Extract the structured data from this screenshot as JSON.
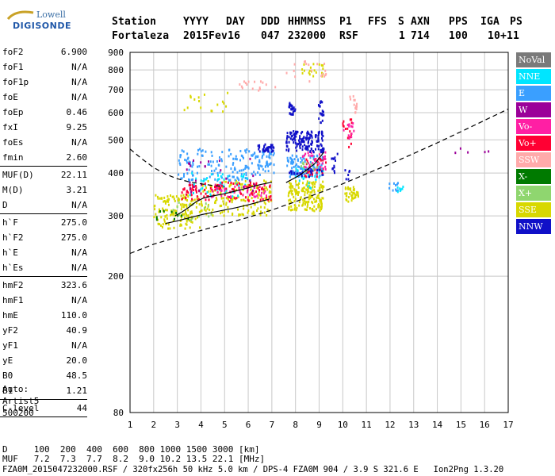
{
  "logo": {
    "line1": "Lowell",
    "line2": "DIGISONDE"
  },
  "header": {
    "labels": [
      "Station",
      "YYYY",
      "DAY",
      "DDD",
      "HHMMSS",
      "P1",
      "FFS",
      "S",
      "AXN",
      "PPS",
      "IGA",
      "PS"
    ],
    "values": [
      "Fortaleza",
      "2015",
      "Fev16",
      "047",
      "232000",
      "RSF",
      "",
      "1",
      "714",
      "100",
      "10+",
      "11"
    ]
  },
  "params_group1": [
    {
      "label": "foF2",
      "value": "6.900"
    },
    {
      "label": "foF1",
      "value": "N/A"
    },
    {
      "label": "foF1p",
      "value": "N/A"
    },
    {
      "label": "foE",
      "value": "N/A"
    },
    {
      "label": "foEp",
      "value": "0.46"
    },
    {
      "label": "fxI",
      "value": "9.25"
    },
    {
      "label": "foEs",
      "value": "N/A"
    },
    {
      "label": "fmin",
      "value": "2.60"
    }
  ],
  "params_group2": [
    {
      "label": "MUF(D)",
      "value": "22.11"
    },
    {
      "label": "M(D)",
      "value": "3.21"
    },
    {
      "label": "D",
      "value": "N/A"
    }
  ],
  "params_group3": [
    {
      "label": "h`F",
      "value": "275.0"
    },
    {
      "label": "h`F2",
      "value": "275.0"
    },
    {
      "label": "h`E",
      "value": "N/A"
    },
    {
      "label": "h`Es",
      "value": "N/A"
    }
  ],
  "params_group4": [
    {
      "label": "hmF2",
      "value": "323.6"
    },
    {
      "label": "hmF1",
      "value": "N/A"
    },
    {
      "label": "hmE",
      "value": "110.0"
    },
    {
      "label": "yF2",
      "value": "40.9"
    },
    {
      "label": "yF1",
      "value": "N/A"
    },
    {
      "label": "yE",
      "value": "20.0"
    },
    {
      "label": "B0",
      "value": "48.5"
    },
    {
      "label": "B1",
      "value": "1.21"
    }
  ],
  "params_group5": [
    {
      "label": "C-level",
      "value": "44"
    }
  ],
  "auto": {
    "line1": "Auto:",
    "line2": "Artist5",
    "line3": "500200"
  },
  "bottom": {
    "d_row": "D     100  200  400  600  800 1000 1500 3000 [km]",
    "muf_row": "MUF   7.2  7.3  7.7  8.2  9.0 10.2 13.5 22.1 [MHz]",
    "footer": "FZA0M_2015047232000.RSF / 320fx256h 50 kHz 5.0 km / DPS-4 FZA0M 904 / 3.9 S 321.6 E   Ion2Png 1.3.20"
  },
  "legend": [
    {
      "label": "NoVal",
      "color": "#7a7a7a",
      "text_color": "#ffffff"
    },
    {
      "label": "NNE",
      "color": "#00e5ff",
      "text_color": "#ffffff"
    },
    {
      "label": "E",
      "color": "#3a9fff",
      "text_color": "#ffffff"
    },
    {
      "label": "W",
      "color": "#9b0099",
      "text_color": "#ffffff"
    },
    {
      "label": "Vo-",
      "color": "#ff1fa4",
      "text_color": "#ffffff"
    },
    {
      "label": "Vo+",
      "color": "#ff0033",
      "text_color": "#ffffff"
    },
    {
      "label": "SSW",
      "color": "#ffaaaa",
      "text_color": "#ffffff"
    },
    {
      "label": "X-",
      "color": "#007a00",
      "text_color": "#ffffff"
    },
    {
      "label": "X+",
      "color": "#8fd66f",
      "text_color": "#ffffff"
    },
    {
      "label": "SSE",
      "color": "#d8d800",
      "text_color": "#ffffff"
    },
    {
      "label": "NNW",
      "color": "#1010c8",
      "text_color": "#ffffff"
    }
  ],
  "chart_data": {
    "type": "scatter",
    "xlim": [
      1,
      17
    ],
    "ylim": [
      80,
      900
    ],
    "y_scale": "log",
    "x_ticks": [
      1,
      2,
      3,
      4,
      5,
      6,
      7,
      8,
      9,
      10,
      11,
      12,
      13,
      14,
      15,
      16,
      17
    ],
    "y_ticks": [
      80,
      200,
      300,
      400,
      500,
      600,
      700,
      800,
      900
    ],
    "grid": true,
    "point_clouds": [
      {
        "name": "SSE",
        "color": "#d8d800",
        "clusters": [
          {
            "x": [
              2,
              4
            ],
            "y": [
              275,
              345
            ],
            "n": 150
          },
          {
            "x": [
              4,
              7
            ],
            "y": [
              300,
              380
            ],
            "n": 170
          },
          {
            "x": [
              7.7,
              9.2
            ],
            "y": [
              310,
              380
            ],
            "n": 170
          },
          {
            "x": [
              10.1,
              10.7
            ],
            "y": [
              330,
              365
            ],
            "n": 40
          },
          {
            "x": [
              2.9,
              5.2
            ],
            "y": [
              600,
              690
            ],
            "n": 18
          },
          {
            "x": [
              8.2,
              9.2
            ],
            "y": [
              760,
              840
            ],
            "n": 20
          }
        ]
      },
      {
        "name": "E",
        "color": "#3a9fff",
        "clusters": [
          {
            "x": [
              3,
              6.5
            ],
            "y": [
              380,
              470
            ],
            "n": 140
          },
          {
            "x": [
              6.4,
              7.1
            ],
            "y": [
              400,
              470
            ],
            "n": 40
          },
          {
            "x": [
              7.6,
              9.2
            ],
            "y": [
              390,
              450
            ],
            "n": 110
          },
          {
            "x": [
              11.9,
              12.5
            ],
            "y": [
              355,
              375
            ],
            "n": 10
          }
        ]
      },
      {
        "name": "NNE",
        "color": "#00e5ff",
        "clusters": [
          {
            "x": [
              3.5,
              6
            ],
            "y": [
              340,
              400
            ],
            "n": 50
          },
          {
            "x": [
              8,
              9.2
            ],
            "y": [
              360,
              420
            ],
            "n": 25
          },
          {
            "x": [
              12.3,
              12.6
            ],
            "y": [
              350,
              370
            ],
            "n": 8
          }
        ]
      },
      {
        "name": "Vo+",
        "color": "#ff0033",
        "clusters": [
          {
            "x": [
              3.2,
              7
            ],
            "y": [
              330,
              375
            ],
            "n": 110
          },
          {
            "x": [
              8.4,
              9.3
            ],
            "y": [
              390,
              440
            ],
            "n": 30
          },
          {
            "x": [
              10,
              10.4
            ],
            "y": [
              470,
              580
            ],
            "n": 15
          }
        ]
      },
      {
        "name": "Vo-",
        "color": "#ff1fa4",
        "clusters": [
          {
            "x": [
              4.3,
              6.8
            ],
            "y": [
              340,
              370
            ],
            "n": 40
          },
          {
            "x": [
              8.3,
              9.3
            ],
            "y": [
              410,
              460
            ],
            "n": 30
          },
          {
            "x": [
              10,
              10.5
            ],
            "y": [
              500,
              560
            ],
            "n": 12
          }
        ]
      },
      {
        "name": "SSW",
        "color": "#ffaaaa",
        "clusters": [
          {
            "x": [
              5.5,
              7.5
            ],
            "y": [
              690,
              740
            ],
            "n": 16
          },
          {
            "x": [
              7.5,
              9.3
            ],
            "y": [
              740,
              850
            ],
            "n": 18
          },
          {
            "x": [
              10.3,
              10.6
            ],
            "y": [
              590,
              680
            ],
            "n": 14
          }
        ]
      },
      {
        "name": "NNW",
        "color": "#1010c8",
        "clusters": [
          {
            "x": [
              6.4,
              7.1
            ],
            "y": [
              460,
              485
            ],
            "n": 40
          },
          {
            "x": [
              7.6,
              9.2
            ],
            "y": [
              460,
              530
            ],
            "n": 150
          },
          {
            "x": [
              7.7,
              9.2
            ],
            "y": [
              390,
              410
            ],
            "n": 25
          },
          {
            "x": [
              7.7,
              8
            ],
            "y": [
              590,
              640
            ],
            "n": 25
          },
          {
            "x": [
              8.9,
              9.2
            ],
            "y": [
              560,
              650
            ],
            "n": 20
          },
          {
            "x": [
              9.5,
              9.8
            ],
            "y": [
              400,
              460
            ],
            "n": 12
          },
          {
            "x": [
              10.1,
              10.3
            ],
            "y": [
              380,
              410
            ],
            "n": 6
          }
        ]
      },
      {
        "name": "W",
        "color": "#9b0099",
        "clusters": [
          {
            "x": [
              3.4,
              6.5
            ],
            "y": [
              350,
              440
            ],
            "n": 25
          },
          {
            "x": [
              14.4,
              16.6
            ],
            "y": [
              455,
              475
            ],
            "n": 5
          }
        ]
      },
      {
        "name": "X-",
        "color": "#007a00",
        "clusters": [
          {
            "x": [
              2,
              3.5
            ],
            "y": [
              290,
              310
            ],
            "n": 10
          }
        ]
      },
      {
        "name": "X+",
        "color": "#8fd66f",
        "clusters": [
          {
            "x": [
              2.5,
              4.5
            ],
            "y": [
              290,
              330
            ],
            "n": 14
          },
          {
            "x": [
              8.2,
              9
            ],
            "y": [
              400,
              430
            ],
            "n": 10
          }
        ]
      }
    ],
    "curves": [
      {
        "name": "dashed_upper",
        "style": "dashed",
        "color": "#000000",
        "x": [
          1,
          1.5,
          2,
          2.5,
          3,
          3.5,
          4,
          4.5,
          5
        ],
        "y": [
          470,
          440,
          415,
          397,
          385,
          377,
          372,
          368,
          365
        ]
      },
      {
        "name": "dashed_lower",
        "style": "dashed",
        "color": "#000000",
        "x": [
          1,
          2,
          3,
          4,
          5,
          6,
          7,
          8,
          9,
          10,
          11,
          12,
          13,
          14,
          15,
          16,
          17
        ],
        "y": [
          233,
          248,
          260,
          272,
          284,
          297,
          312,
          330,
          350,
          372,
          398,
          425,
          456,
          490,
          528,
          570,
          615
        ]
      },
      {
        "name": "trace_top",
        "style": "solid",
        "color": "#000000",
        "x": [
          2.9,
          3.2,
          3.5,
          3.8,
          4.1,
          4.4,
          5,
          5.5,
          6,
          6.5,
          7
        ],
        "y": [
          300,
          308,
          318,
          330,
          338,
          342,
          348,
          355,
          362,
          370,
          376
        ]
      },
      {
        "name": "trace_bottom",
        "style": "solid",
        "color": "#000000",
        "x": [
          2.5,
          3,
          3.5,
          4,
          4.5,
          5,
          5.5,
          6,
          6.5,
          6.9
        ],
        "y": [
          285,
          290,
          296,
          302,
          307,
          312,
          317,
          323,
          330,
          336
        ]
      },
      {
        "name": "trace_right",
        "style": "solid",
        "color": "#000000",
        "x": [
          7.6,
          8.2,
          8.8,
          9.2
        ],
        "y": [
          375,
          395,
          425,
          460
        ]
      }
    ]
  }
}
